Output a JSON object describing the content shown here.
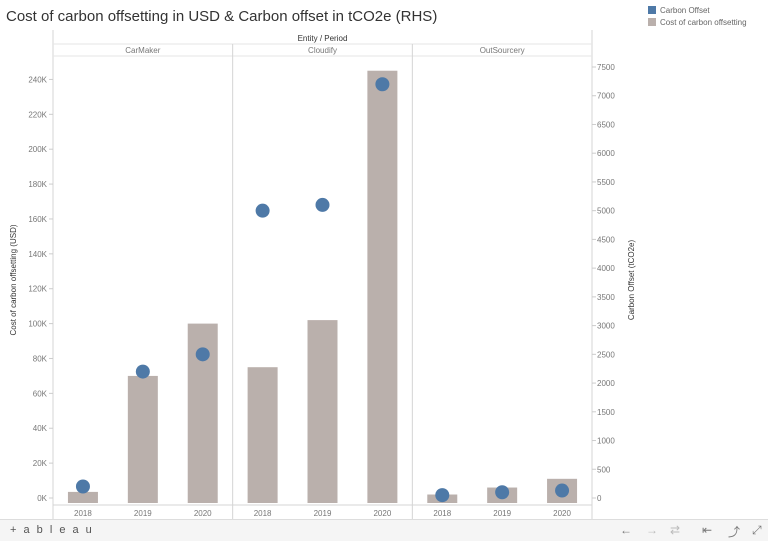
{
  "title": "Cost of carbon offsetting in USD & Carbon offset in tCO2e (RHS)",
  "legend": [
    {
      "label": "Carbon Offset",
      "color": "#4e79a7"
    },
    {
      "label": "Cost of carbon offsetting",
      "color": "#bab0ac"
    }
  ],
  "chart_data": {
    "type": "bar",
    "header": "Entity / Period",
    "panels": [
      "CarMaker",
      "Cloudify",
      "OutSourcery"
    ],
    "categories": [
      "2018",
      "2019",
      "2020"
    ],
    "series": [
      {
        "name": "Cost of carbon offsetting",
        "type": "bar",
        "axis": "left",
        "values": [
          [
            3500,
            70000,
            100000
          ],
          [
            75000,
            102000,
            245000
          ],
          [
            2000,
            6000,
            11000
          ]
        ]
      },
      {
        "name": "Carbon Offset",
        "type": "scatter",
        "axis": "right",
        "values": [
          [
            200,
            2200,
            2500
          ],
          [
            5000,
            5100,
            7200
          ],
          [
            50,
            100,
            130
          ]
        ]
      }
    ],
    "ylabel": "Cost of carbon offsetting (USD)",
    "y2label": "Carbon Offset (tCO2e)",
    "ylim": [
      0,
      250000
    ],
    "y2lim": [
      0,
      7650
    ],
    "yticks": [
      0,
      20000,
      40000,
      60000,
      80000,
      100000,
      120000,
      140000,
      160000,
      180000,
      200000,
      220000,
      240000
    ],
    "yticklabels": [
      "0K",
      "20K",
      "40K",
      "60K",
      "80K",
      "100K",
      "120K",
      "140K",
      "160K",
      "180K",
      "200K",
      "220K",
      "240K"
    ],
    "y2ticks": [
      0,
      500,
      1000,
      1500,
      2000,
      2500,
      3000,
      3500,
      4000,
      4500,
      5000,
      5500,
      6000,
      6500,
      7000,
      7500
    ],
    "y2ticklabels": [
      "0",
      "500",
      "1000",
      "1500",
      "2000",
      "2500",
      "3000",
      "3500",
      "4000",
      "4500",
      "5000",
      "5500",
      "6000",
      "6500",
      "7000",
      "7500"
    ],
    "grid": false,
    "legend_position": "top-right"
  },
  "toolbar": {
    "logo": "+ a b l e a u",
    "undo": "←",
    "redo": "→",
    "revert": "⇄",
    "reset": "⇤",
    "share": "⤴",
    "fullscreen": "⤢"
  }
}
